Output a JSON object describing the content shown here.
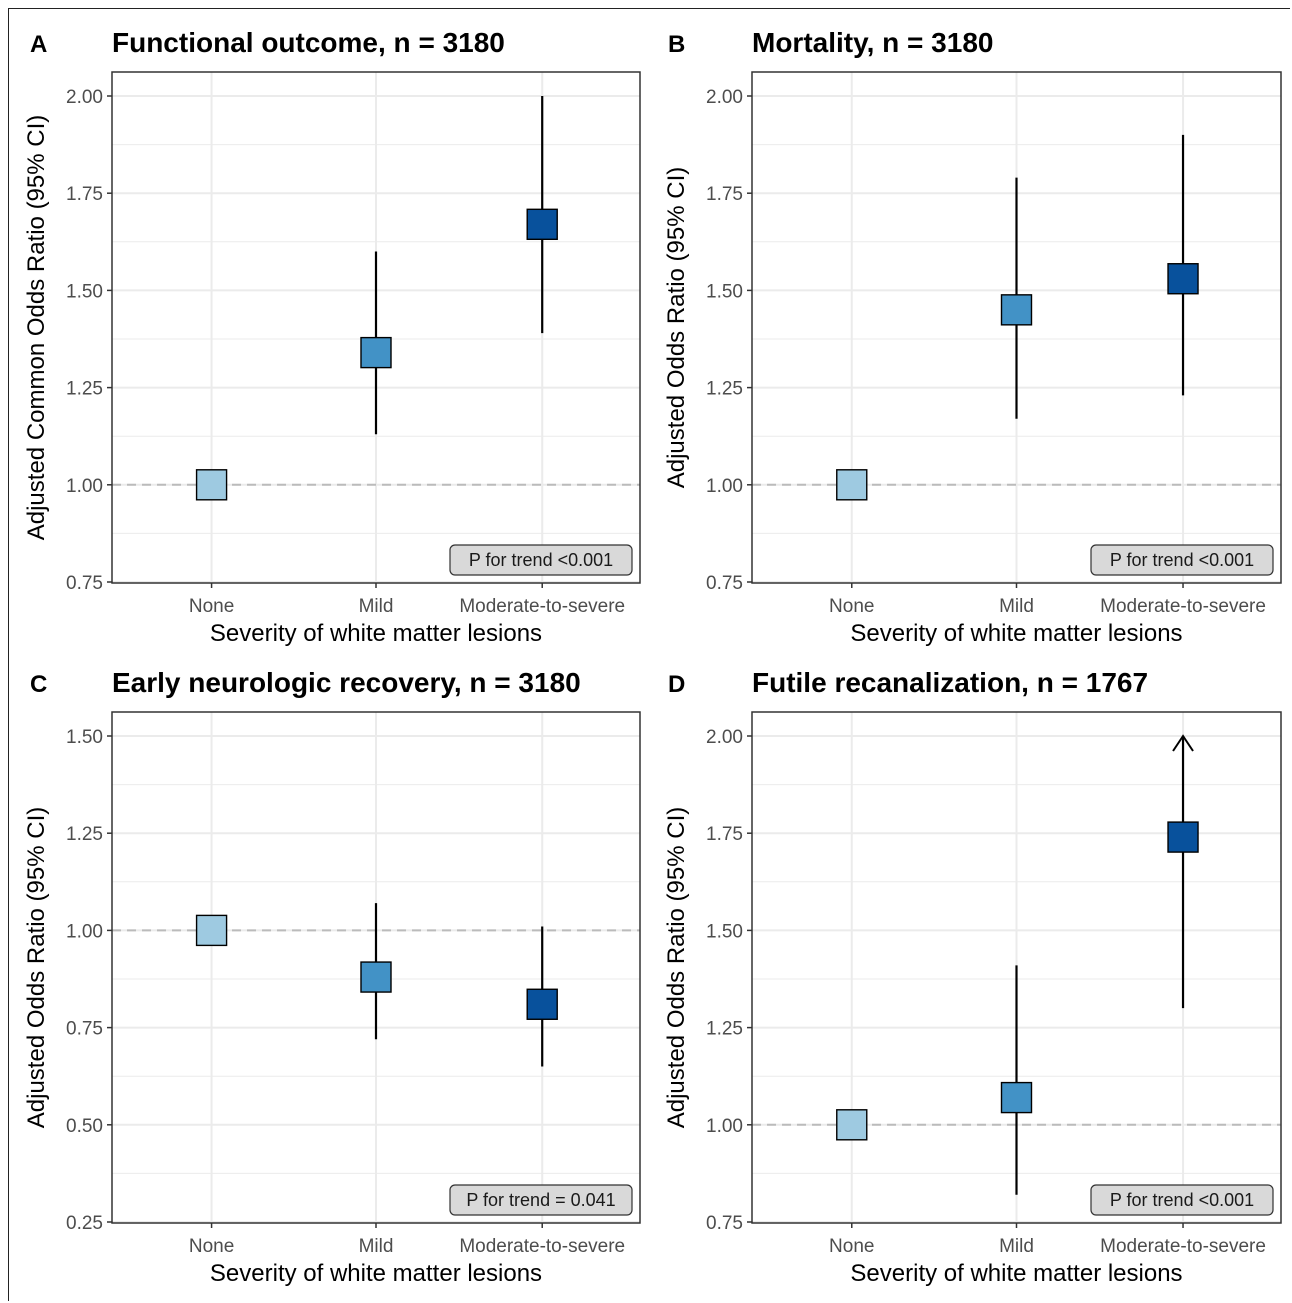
{
  "colors": {
    "none": "#9ecae1",
    "mild": "#4292c6",
    "moderate_to_severe": "#08519c",
    "reference_line": "#bbbbbb",
    "panel_border": "#333333",
    "grid": "#ebebeb",
    "annotation_fill": "#d9d9d9"
  },
  "chart_data": [
    {
      "panel_letter": "A",
      "type": "scatter",
      "title": "Functional outcome, n = 3180",
      "xlabel": "Severity of white matter lesions",
      "ylabel": "Adjusted Common Odds Ratio (95% CI)",
      "categories": [
        "None",
        "Mild",
        "Moderate-to-severe"
      ],
      "ylim": [
        0.75,
        2.0
      ],
      "yticks": [
        "0.75",
        "1.00",
        "1.25",
        "1.50",
        "1.75",
        "2.00"
      ],
      "reference_line": 1.0,
      "points": [
        {
          "category": "None",
          "value": 1.0,
          "lower": null,
          "upper": null
        },
        {
          "category": "Mild",
          "value": 1.34,
          "lower": 1.13,
          "upper": 1.6
        },
        {
          "category": "Moderate-to-severe",
          "value": 1.67,
          "lower": 1.39,
          "upper": 2.0
        }
      ],
      "annotation": "P for trend <0.001",
      "grid": true
    },
    {
      "panel_letter": "B",
      "type": "scatter",
      "title": "Mortality, n = 3180",
      "xlabel": "Severity of white matter lesions",
      "ylabel": "Adjusted Odds Ratio (95% CI)",
      "categories": [
        "None",
        "Mild",
        "Moderate-to-severe"
      ],
      "ylim": [
        0.75,
        2.0
      ],
      "yticks": [
        "0.75",
        "1.00",
        "1.25",
        "1.50",
        "1.75",
        "2.00"
      ],
      "reference_line": 1.0,
      "points": [
        {
          "category": "None",
          "value": 1.0,
          "lower": null,
          "upper": null
        },
        {
          "category": "Mild",
          "value": 1.45,
          "lower": 1.17,
          "upper": 1.79
        },
        {
          "category": "Moderate-to-severe",
          "value": 1.53,
          "lower": 1.23,
          "upper": 1.9
        }
      ],
      "annotation": "P for trend <0.001",
      "grid": true
    },
    {
      "panel_letter": "C",
      "type": "scatter",
      "title": "Early neurologic recovery, n = 3180",
      "xlabel": "Severity of white matter lesions",
      "ylabel": "Adjusted Odds Ratio (95% CI)",
      "categories": [
        "None",
        "Mild",
        "Moderate-to-severe"
      ],
      "ylim": [
        0.25,
        1.5
      ],
      "yticks": [
        "0.25",
        "0.50",
        "0.75",
        "1.00",
        "1.25",
        "1.50"
      ],
      "reference_line": 1.0,
      "points": [
        {
          "category": "None",
          "value": 1.0,
          "lower": null,
          "upper": null
        },
        {
          "category": "Mild",
          "value": 0.88,
          "lower": 0.72,
          "upper": 1.07
        },
        {
          "category": "Moderate-to-severe",
          "value": 0.81,
          "lower": 0.65,
          "upper": 1.01
        }
      ],
      "annotation": "P for trend = 0.041",
      "grid": true
    },
    {
      "panel_letter": "D",
      "type": "scatter",
      "title": "Futile recanalization, n = 1767",
      "xlabel": "Severity of white matter lesions",
      "ylabel": "Adjusted Odds Ratio (95% CI)",
      "categories": [
        "None",
        "Mild",
        "Moderate-to-severe"
      ],
      "ylim": [
        0.75,
        2.0
      ],
      "yticks": [
        "0.75",
        "1.00",
        "1.25",
        "1.50",
        "1.75",
        "2.00"
      ],
      "reference_line": 1.0,
      "points": [
        {
          "category": "None",
          "value": 1.0,
          "lower": null,
          "upper": null
        },
        {
          "category": "Mild",
          "value": 1.07,
          "lower": 0.82,
          "upper": 1.41
        },
        {
          "category": "Moderate-to-severe",
          "value": 1.74,
          "lower": 1.3,
          "upper": 2.0,
          "upper_truncated": true
        }
      ],
      "annotation": "P for trend <0.001",
      "grid": true
    }
  ]
}
